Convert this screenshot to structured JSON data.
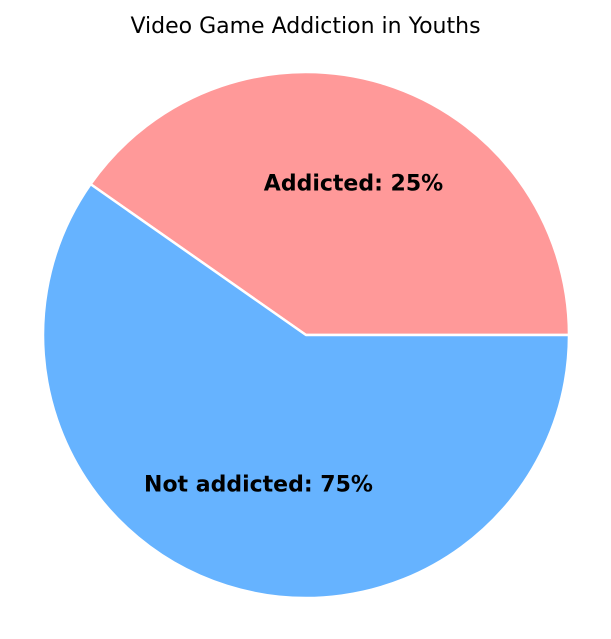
{
  "chart_data": {
    "type": "pie",
    "title": "Video Game Addiction in Youths",
    "slices": [
      {
        "label": "Addicted: 25%",
        "category": "Addicted",
        "percent": 25,
        "value": 0.25,
        "color": "#ff9999"
      },
      {
        "label": "Not addicted: 75%",
        "category": "Not addicted",
        "percent": 75,
        "value": 0.75,
        "color": "#66b3ff"
      }
    ],
    "edge_color": "#ffffff",
    "legend": false
  }
}
